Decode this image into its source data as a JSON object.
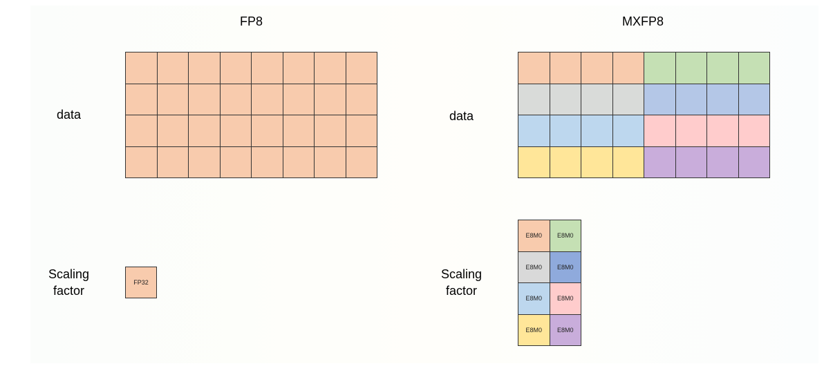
{
  "left": {
    "title": "FP8",
    "data_label": "data",
    "scaling_label_line1": "Scaling",
    "scaling_label_line2": "factor",
    "scale_cell": {
      "text": "FP32",
      "color": "#F8CBAD"
    },
    "grid": {
      "rows": 4,
      "cols": 8,
      "color": "#F8CBAD"
    }
  },
  "right": {
    "title": "MXFP8",
    "data_label": "data",
    "scaling_label_line1": "Scaling",
    "scaling_label_line2": "factor",
    "grid": {
      "rows": 4,
      "cols": 8,
      "block_cols": 4,
      "block_colors": [
        [
          "#F8CBAD",
          "#C5E0B4"
        ],
        [
          "#D9DBD9",
          "#B4C7E7"
        ],
        [
          "#BDD7EE",
          "#FFCCCC"
        ],
        [
          "#FFE699",
          "#C9ADDB"
        ]
      ]
    },
    "scales": [
      {
        "text": "E8M0",
        "color": "#F8CBAD"
      },
      {
        "text": "E8M0",
        "color": "#C5E0B4"
      },
      {
        "text": "E8M0",
        "color": "#D9D9D9"
      },
      {
        "text": "E8M0",
        "color": "#8FAADC"
      },
      {
        "text": "E8M0",
        "color": "#BDD7EE"
      },
      {
        "text": "E8M0",
        "color": "#FFCCCC"
      },
      {
        "text": "E8M0",
        "color": "#FFE699"
      },
      {
        "text": "E8M0",
        "color": "#C9ADDB"
      }
    ]
  }
}
